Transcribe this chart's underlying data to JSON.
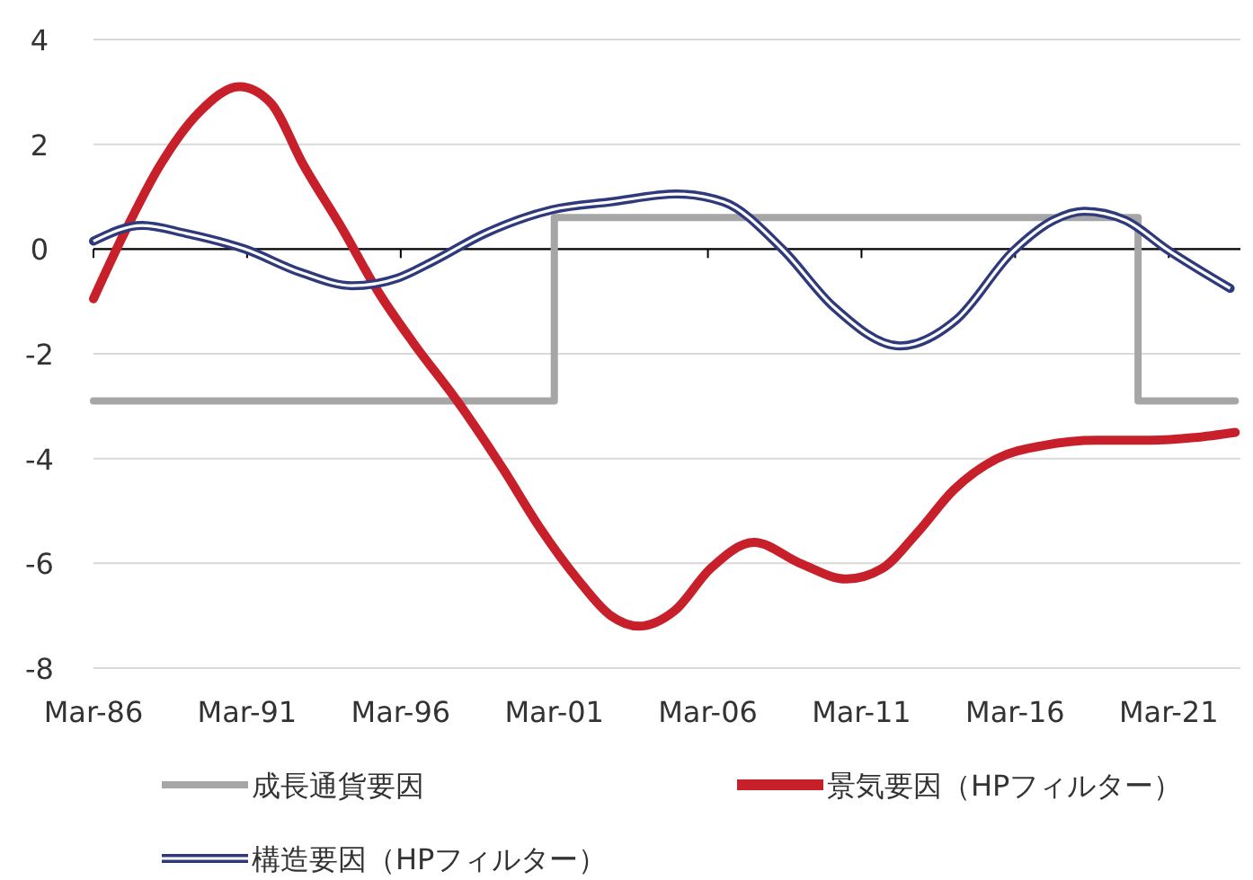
{
  "chart_data": {
    "type": "line",
    "xlim": [
      "1986-03",
      "2023-07"
    ],
    "ylim": [
      -8,
      4
    ],
    "yticks": [
      -8,
      -6,
      -4,
      -2,
      0,
      2,
      4
    ],
    "xticks": [
      {
        "value": "1986-03",
        "label": "Mar-86"
      },
      {
        "value": "1991-03",
        "label": "Mar-91"
      },
      {
        "value": "1996-03",
        "label": "Mar-96"
      },
      {
        "value": "2001-03",
        "label": "Mar-01"
      },
      {
        "value": "2006-03",
        "label": "Mar-06"
      },
      {
        "value": "2011-03",
        "label": "Mar-11"
      },
      {
        "value": "2016-03",
        "label": "Mar-16"
      },
      {
        "value": "2021-03",
        "label": "Mar-21"
      }
    ],
    "grid": "y",
    "legend": "bottom",
    "line_style": "solid",
    "series": [
      {
        "name": "成長通貨要因",
        "type": "step",
        "color": "#a6a6a6",
        "x": [
          "1986-03",
          "2001-03",
          "2020-03",
          "2023-05"
        ],
        "values": [
          -2.9,
          0.6,
          -2.9,
          -2.9
        ]
      },
      {
        "name": "景気要因（HPフィルター）",
        "color": "#c8202a",
        "x": [
          "1986-03",
          "1987-03",
          "1988-05",
          "1989-08",
          "1990-12",
          "1991-12",
          "1993-01",
          "1994-04",
          "1995-06",
          "1996-08",
          "1998-01",
          "1999-07",
          "2000-09",
          "2001-12",
          "2003-01",
          "2003-12",
          "2005-02",
          "2006-04",
          "2007-09",
          "2009-03",
          "2010-09",
          "2011-11",
          "2013-01",
          "2014-03",
          "2015-08",
          "2017-02",
          "2018-11",
          "2020-08",
          "2022-01",
          "2023-05"
        ],
        "values": [
          -0.95,
          0.3,
          1.6,
          2.6,
          3.1,
          2.8,
          1.6,
          0.4,
          -0.8,
          -1.8,
          -2.9,
          -4.2,
          -5.3,
          -6.3,
          -7.0,
          -7.2,
          -6.9,
          -6.1,
          -5.6,
          -6.0,
          -6.3,
          -6.1,
          -5.4,
          -4.6,
          -4.0,
          -3.75,
          -3.65,
          -3.65,
          -3.6,
          -3.5
        ]
      },
      {
        "name": "構造要因（HPフィルター）",
        "color": "#2e3a7c",
        "x": [
          "1986-03",
          "1987-10",
          "1989-03",
          "1991-02",
          "1992-12",
          "1994-08",
          "1996-02",
          "1997-03",
          "1998-12",
          "2001-02",
          "2003-01",
          "2005-03",
          "2006-09",
          "2008-08",
          "2010-04",
          "2012-06",
          "2014-04",
          "2016-02",
          "2017-06",
          "2018-06",
          "2019-10",
          "2021-02",
          "2023-03"
        ],
        "values": [
          0.15,
          0.45,
          0.3,
          0.0,
          -0.45,
          -0.7,
          -0.55,
          -0.25,
          0.3,
          0.75,
          0.9,
          1.05,
          0.9,
          0.0,
          -1.1,
          -1.85,
          -1.35,
          -0.05,
          0.55,
          0.72,
          0.55,
          0.0,
          -0.75
        ]
      }
    ]
  }
}
